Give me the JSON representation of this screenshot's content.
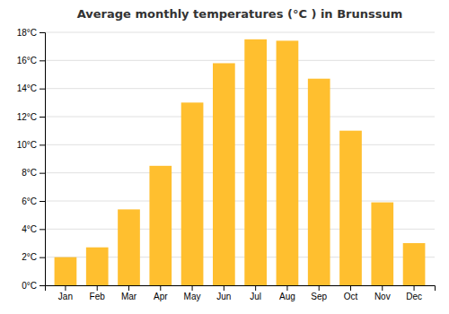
{
  "chart_data": {
    "type": "bar",
    "title": "Average monthly temperatures (°C ) in Brunssum",
    "categories": [
      "Jan",
      "Feb",
      "Mar",
      "Apr",
      "May",
      "Jun",
      "Jul",
      "Aug",
      "Sep",
      "Oct",
      "Nov",
      "Dec"
    ],
    "values": [
      2.0,
      2.7,
      5.4,
      8.5,
      13.0,
      15.8,
      17.5,
      17.4,
      14.7,
      11.0,
      5.9,
      3.0
    ],
    "color": "#FFBF2F",
    "ylim": [
      0,
      18
    ],
    "yticks": [
      {
        "value": 0,
        "label": "0°C"
      },
      {
        "value": 2,
        "label": "2°C"
      },
      {
        "value": 4,
        "label": "4°C"
      },
      {
        "value": 6,
        "label": "6°C"
      },
      {
        "value": 8,
        "label": "8°C"
      },
      {
        "value": 10,
        "label": "10°C"
      },
      {
        "value": 12,
        "label": "12°C"
      },
      {
        "value": 14,
        "label": "14°C"
      },
      {
        "value": 16,
        "label": "16°C"
      },
      {
        "value": 18,
        "label": "18°C"
      }
    ],
    "grid": true
  }
}
